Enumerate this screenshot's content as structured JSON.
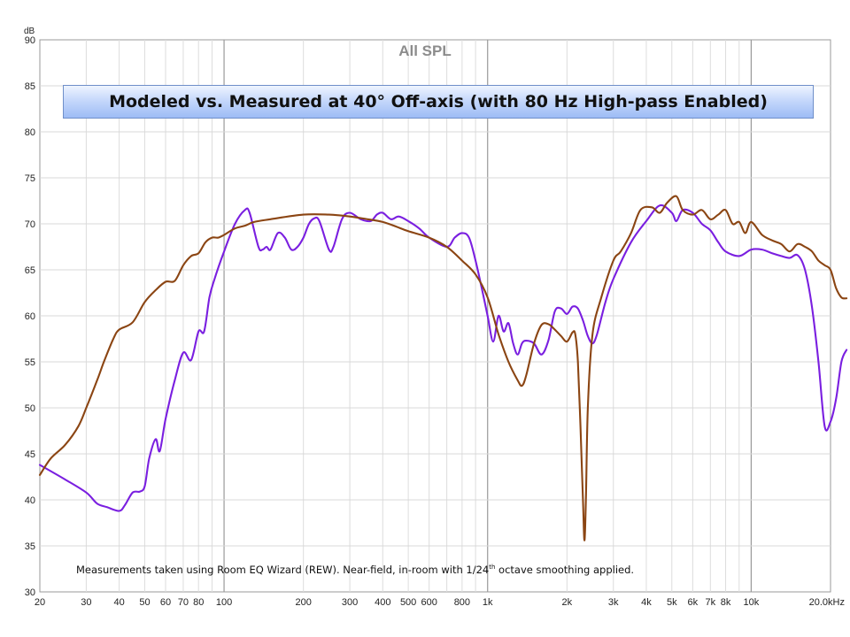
{
  "chart_data": {
    "type": "line",
    "title": "All SPL",
    "banner": "Modeled vs. Measured at 40° Off-axis (with 80 Hz High-pass Enabled)",
    "note": {
      "before": "Measurements taken using Room EQ Wizard (REW). Near-field, in-room with 1/24",
      "sup": "th",
      "after": " octave smoothing applied."
    },
    "ylabel": "dB",
    "ylim": [
      30,
      90
    ],
    "y_ticks": [
      "30",
      "35",
      "40",
      "45",
      "50",
      "55",
      "60",
      "65",
      "70",
      "75",
      "80",
      "85",
      "90"
    ],
    "x_scale": "log",
    "xlim": [
      20,
      20000
    ],
    "x_ticks": [
      {
        "f": 20,
        "label": "20"
      },
      {
        "f": 30,
        "label": "30"
      },
      {
        "f": 40,
        "label": "40"
      },
      {
        "f": 50,
        "label": "50"
      },
      {
        "f": 60,
        "label": "60"
      },
      {
        "f": 70,
        "label": "70"
      },
      {
        "f": 80,
        "label": "80"
      },
      {
        "f": 100,
        "label": "100"
      },
      {
        "f": 200,
        "label": "200"
      },
      {
        "f": 300,
        "label": "300"
      },
      {
        "f": 400,
        "label": "400"
      },
      {
        "f": 500,
        "label": "500"
      },
      {
        "f": 600,
        "label": "600"
      },
      {
        "f": 800,
        "label": "800"
      },
      {
        "f": 1000,
        "label": "1k"
      },
      {
        "f": 2000,
        "label": "2k"
      },
      {
        "f": 3000,
        "label": "3k"
      },
      {
        "f": 4000,
        "label": "4k"
      },
      {
        "f": 5000,
        "label": "5k"
      },
      {
        "f": 6000,
        "label": "6k"
      },
      {
        "f": 7000,
        "label": "7k"
      },
      {
        "f": 8000,
        "label": "8k"
      },
      {
        "f": 10000,
        "label": "10k"
      },
      {
        "f": 20000,
        "label": "20.0kHz"
      }
    ],
    "grid": true,
    "series": [
      {
        "name": "Measured",
        "color": "#7a1fe0",
        "points": [
          [
            20,
            43.8
          ],
          [
            25,
            42.2
          ],
          [
            30,
            40.8
          ],
          [
            33,
            39.6
          ],
          [
            36,
            39.2
          ],
          [
            40,
            38.8
          ],
          [
            42,
            39.4
          ],
          [
            45,
            40.8
          ],
          [
            48,
            40.9
          ],
          [
            50,
            41.5
          ],
          [
            52,
            44.5
          ],
          [
            55,
            46.6
          ],
          [
            57,
            45.3
          ],
          [
            60,
            48.8
          ],
          [
            65,
            53
          ],
          [
            70,
            56
          ],
          [
            75,
            55.2
          ],
          [
            80,
            58.3
          ],
          [
            84,
            58.3
          ],
          [
            88,
            62
          ],
          [
            92,
            64
          ],
          [
            100,
            67
          ],
          [
            110,
            70
          ],
          [
            120,
            71.5
          ],
          [
            125,
            71.2
          ],
          [
            135,
            67.5
          ],
          [
            140,
            67.2
          ],
          [
            145,
            67.5
          ],
          [
            150,
            67.2
          ],
          [
            160,
            69
          ],
          [
            170,
            68.5
          ],
          [
            180,
            67.2
          ],
          [
            190,
            67.5
          ],
          [
            200,
            68.5
          ],
          [
            210,
            70
          ],
          [
            220,
            70.6
          ],
          [
            230,
            70.3
          ],
          [
            250,
            67.2
          ],
          [
            260,
            67.5
          ],
          [
            280,
            70.5
          ],
          [
            300,
            71.2
          ],
          [
            330,
            70.5
          ],
          [
            360,
            70.3
          ],
          [
            380,
            71
          ],
          [
            400,
            71.2
          ],
          [
            430,
            70.5
          ],
          [
            460,
            70.8
          ],
          [
            500,
            70.3
          ],
          [
            550,
            69.5
          ],
          [
            600,
            68.5
          ],
          [
            700,
            67.5
          ],
          [
            750,
            68.5
          ],
          [
            800,
            69
          ],
          [
            850,
            68.5
          ],
          [
            900,
            66
          ],
          [
            950,
            63
          ],
          [
            1000,
            60
          ],
          [
            1050,
            57.2
          ],
          [
            1100,
            60
          ],
          [
            1150,
            58.3
          ],
          [
            1200,
            59.2
          ],
          [
            1250,
            57
          ],
          [
            1300,
            55.8
          ],
          [
            1350,
            57
          ],
          [
            1400,
            57.3
          ],
          [
            1500,
            57
          ],
          [
            1600,
            55.8
          ],
          [
            1700,
            57.3
          ],
          [
            1800,
            60.5
          ],
          [
            1900,
            60.8
          ],
          [
            2000,
            60.2
          ],
          [
            2100,
            61
          ],
          [
            2200,
            60.8
          ],
          [
            2300,
            59.5
          ],
          [
            2400,
            57.8
          ],
          [
            2500,
            57
          ],
          [
            2600,
            58
          ],
          [
            2800,
            61.5
          ],
          [
            3000,
            64
          ],
          [
            3500,
            68
          ],
          [
            4000,
            70.3
          ],
          [
            4500,
            72
          ],
          [
            5000,
            71.2
          ],
          [
            5200,
            70.3
          ],
          [
            5500,
            71.5
          ],
          [
            6000,
            71.2
          ],
          [
            6500,
            70
          ],
          [
            7000,
            69.3
          ],
          [
            7500,
            68
          ],
          [
            8000,
            67
          ],
          [
            9000,
            66.5
          ],
          [
            10000,
            67.2
          ],
          [
            11000,
            67.2
          ],
          [
            12000,
            66.8
          ],
          [
            13000,
            66.5
          ],
          [
            14000,
            66.3
          ],
          [
            15000,
            66.6
          ],
          [
            16000,
            65
          ],
          [
            17000,
            61
          ],
          [
            18000,
            55
          ],
          [
            19000,
            48
          ],
          [
            20000,
            48.5
          ],
          [
            21000,
            51
          ],
          [
            22000,
            55
          ],
          [
            23000,
            56.3
          ]
        ]
      },
      {
        "name": "Modeled",
        "color": "#8b4513",
        "points": [
          [
            20,
            42.7
          ],
          [
            22,
            44.5
          ],
          [
            25,
            46
          ],
          [
            28,
            48
          ],
          [
            30,
            50
          ],
          [
            33,
            53
          ],
          [
            35,
            55
          ],
          [
            38,
            57.5
          ],
          [
            40,
            58.5
          ],
          [
            45,
            59.3
          ],
          [
            50,
            61.5
          ],
          [
            55,
            62.8
          ],
          [
            60,
            63.7
          ],
          [
            65,
            63.8
          ],
          [
            70,
            65.5
          ],
          [
            75,
            66.5
          ],
          [
            80,
            66.8
          ],
          [
            85,
            68
          ],
          [
            90,
            68.5
          ],
          [
            95,
            68.5
          ],
          [
            100,
            68.8
          ],
          [
            110,
            69.5
          ],
          [
            120,
            69.8
          ],
          [
            130,
            70.2
          ],
          [
            150,
            70.5
          ],
          [
            200,
            71
          ],
          [
            250,
            71
          ],
          [
            300,
            70.8
          ],
          [
            350,
            70.5
          ],
          [
            400,
            70.2
          ],
          [
            450,
            69.7
          ],
          [
            500,
            69.2
          ],
          [
            600,
            68.5
          ],
          [
            700,
            67.5
          ],
          [
            800,
            66
          ],
          [
            900,
            64.5
          ],
          [
            1000,
            62
          ],
          [
            1100,
            58
          ],
          [
            1200,
            55
          ],
          [
            1300,
            53
          ],
          [
            1350,
            52.4
          ],
          [
            1400,
            53.5
          ],
          [
            1500,
            57
          ],
          [
            1600,
            59
          ],
          [
            1700,
            59.1
          ],
          [
            1800,
            58.5
          ],
          [
            1900,
            57.8
          ],
          [
            2000,
            57.2
          ],
          [
            2100,
            58.2
          ],
          [
            2150,
            58
          ],
          [
            2200,
            55
          ],
          [
            2250,
            48
          ],
          [
            2300,
            40
          ],
          [
            2330,
            35.6
          ],
          [
            2360,
            40
          ],
          [
            2400,
            50
          ],
          [
            2500,
            58
          ],
          [
            2700,
            62
          ],
          [
            3000,
            66
          ],
          [
            3200,
            67
          ],
          [
            3500,
            69
          ],
          [
            3800,
            71.5
          ],
          [
            4200,
            71.8
          ],
          [
            4500,
            71.2
          ],
          [
            4800,
            72.3
          ],
          [
            5200,
            73
          ],
          [
            5500,
            71.5
          ],
          [
            6000,
            71
          ],
          [
            6500,
            71.5
          ],
          [
            7000,
            70.5
          ],
          [
            7500,
            71
          ],
          [
            8000,
            71.5
          ],
          [
            8500,
            70
          ],
          [
            9000,
            70.2
          ],
          [
            9500,
            69
          ],
          [
            10000,
            70.2
          ],
          [
            11000,
            68.8
          ],
          [
            12000,
            68.2
          ],
          [
            13000,
            67.8
          ],
          [
            14000,
            67
          ],
          [
            15000,
            67.8
          ],
          [
            16000,
            67.5
          ],
          [
            17000,
            67
          ],
          [
            18000,
            66
          ],
          [
            19000,
            65.5
          ],
          [
            20000,
            65
          ],
          [
            21000,
            63
          ],
          [
            22000,
            62
          ],
          [
            23000,
            61.9
          ]
        ]
      }
    ]
  }
}
